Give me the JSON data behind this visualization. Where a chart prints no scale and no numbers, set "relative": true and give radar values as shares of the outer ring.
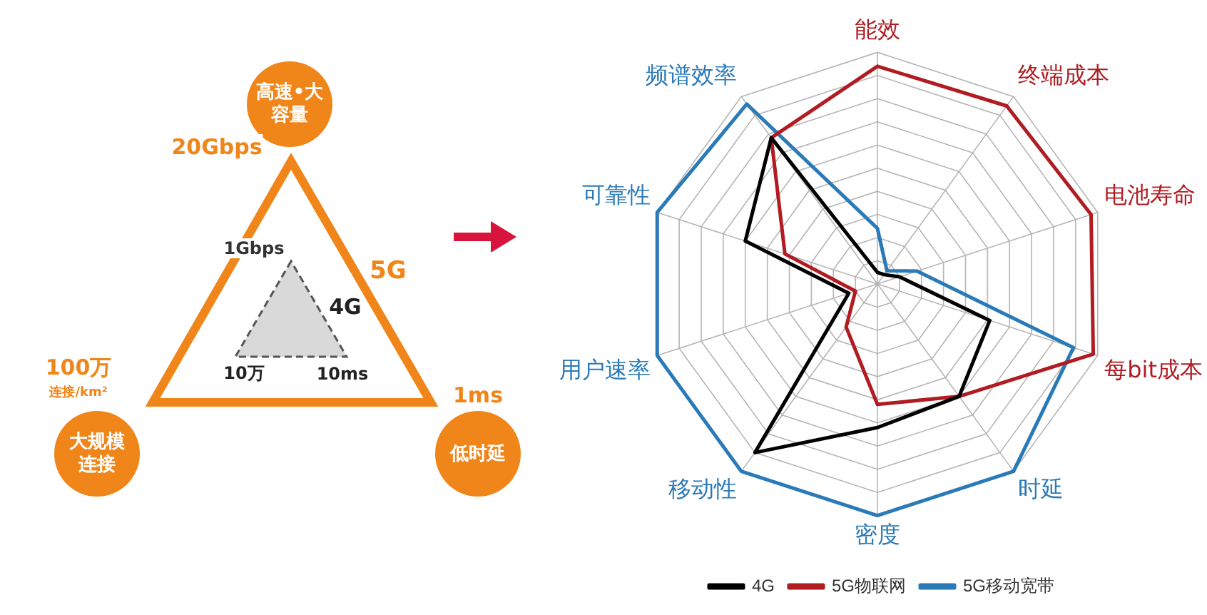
{
  "chart_data": [
    {
      "type": "other",
      "annotations": [
        "高速•大容量",
        "20Gbps",
        "5G",
        "1Gbps",
        "4G",
        "10万",
        "10ms",
        "100万",
        "连接/km²",
        "大规模连接",
        "1ms",
        "低时延"
      ]
    },
    {
      "type": "radar",
      "relative": true,
      "grid": true,
      "legend": "bottom",
      "categories": [
        "能效",
        "终端成本",
        "电池寿命",
        "每bit成本",
        "时延",
        "密度",
        "移动性",
        "用户速率",
        "可靠性",
        "频谱效率"
      ],
      "series": [
        {
          "name": "4G",
          "color": "#000000",
          "values": [
            0.05,
            0.05,
            0.1,
            0.51,
            0.6,
            0.62,
            0.9,
            0.13,
            0.6,
            0.78
          ]
        },
        {
          "name": "5G物联网",
          "color": "#b01c22",
          "values": [
            0.94,
            0.95,
            0.97,
            0.98,
            0.6,
            0.52,
            0.23,
            0.1,
            0.42,
            0.78
          ]
        },
        {
          "name": "5G移动宽带",
          "color": "#2a7ab8",
          "values": [
            0.24,
            0.07,
            0.18,
            0.89,
            1,
            1,
            1,
            1,
            1,
            0.96
          ]
        }
      ]
    }
  ]
}
